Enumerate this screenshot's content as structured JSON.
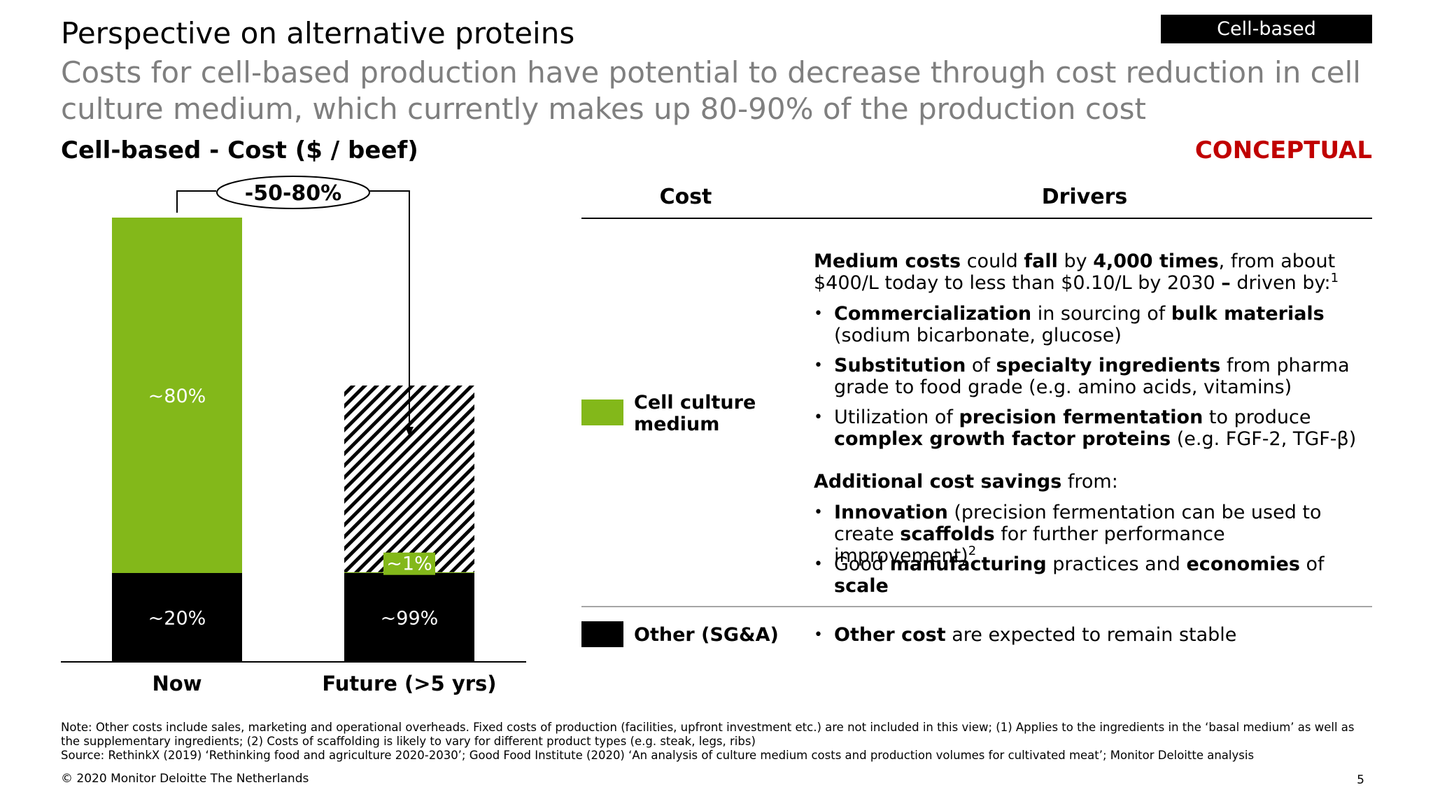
{
  "header": {
    "title": "Perspective on alternative proteins",
    "subtitle": "Costs for cell-based production have potential to decrease through cost reduction in cell culture medium, which currently makes up 80-90% of the production cost",
    "tag": "Cell-based",
    "conceptual": "CONCEPTUAL"
  },
  "chart_data": {
    "type": "bar",
    "stacked": true,
    "title": "Cell-based - Cost ($ / beef)",
    "categories": [
      "Now",
      "Future (>5 yrs)"
    ],
    "series": [
      {
        "name": "Other (SG&A)",
        "color": "#000000",
        "values": [
          20,
          20
        ],
        "labels": [
          "~20%",
          "~99%"
        ]
      },
      {
        "name": "Cell culture medium",
        "color": "#83b81a",
        "values": [
          80,
          0.2
        ],
        "labels": [
          "~80%",
          "~1%"
        ]
      },
      {
        "name": "Reduction",
        "color": "hatched",
        "values": [
          0,
          42
        ],
        "labels": [
          "",
          ""
        ]
      }
    ],
    "ylim": [
      0,
      100
    ],
    "annotation": "-50-80%",
    "axis": {
      "y_visible": false
    }
  },
  "table": {
    "col_cost": "Cost",
    "col_drivers": "Drivers",
    "rows": [
      {
        "cost": "Cell culture medium",
        "color": "#83b81a"
      },
      {
        "cost": "Other (SG&A)",
        "color": "#000000"
      }
    ]
  },
  "drivers": {
    "intro_b1": "Medium costs",
    "intro_t1": " could ",
    "intro_b2": "fall",
    "intro_t2": " by ",
    "intro_b3": "4,000 times",
    "intro_t3": ", from about $400/L today to less than $0.10/L by 2030 ",
    "intro_b4": "–",
    "intro_t4": " driven by:",
    "intro_sup": "1",
    "b1_b1": "Commercialization",
    "b1_t1": " in sourcing of ",
    "b1_b2": "bulk materials",
    "b1_t2": " (sodium bicarbonate, glucose)",
    "b2_b1": "Substitution",
    "b2_t1": " of ",
    "b2_b2": "specialty ingredients",
    "b2_t2": " from pharma grade to food grade (e.g. amino acids, vitamins)",
    "b3_t0": "Utilization of ",
    "b3_b1": "precision fermentation",
    "b3_t1": " to produce ",
    "b3_b2": "complex growth factor proteins",
    "b3_t2": " (e.g. FGF-2, TGF-β)",
    "add_b": "Additional cost savings",
    "add_t": " from:",
    "b4_b1": "Innovation",
    "b4_t1": " (precision fermentation can be used to create ",
    "b4_b2": "scaffolds",
    "b4_t2": " for further performance improvement)",
    "b4_sup": "2",
    "b5_t0": "Good ",
    "b5_b1": "manufacturing",
    "b5_t1": " practices and ",
    "b5_b2": "economies",
    "b5_t2": " of ",
    "b5_b3": "scale",
    "b6_b1": "Other cost",
    "b6_t1": " are expected to remain stable",
    "bullet": "•"
  },
  "footer": {
    "note": "Note: Other costs include sales, marketing and operational overheads. Fixed costs of production (facilities, upfront investment etc.) are not included in this view; (1) Applies to the ingredients in the ‘basal medium’ as well as the supplementary ingredients; (2) Costs of scaffolding is likely to vary for different product types (e.g. steak, legs, ribs)",
    "source": "Source: RethinkX (2019) ‘Rethinking food and agriculture 2020-2030’; Good Food Institute (2020) ‘An analysis of culture medium costs and production volumes for cultivated meat’; Monitor Deloitte analysis",
    "copyright": "© 2020 Monitor Deloitte The Netherlands",
    "page": "5"
  }
}
